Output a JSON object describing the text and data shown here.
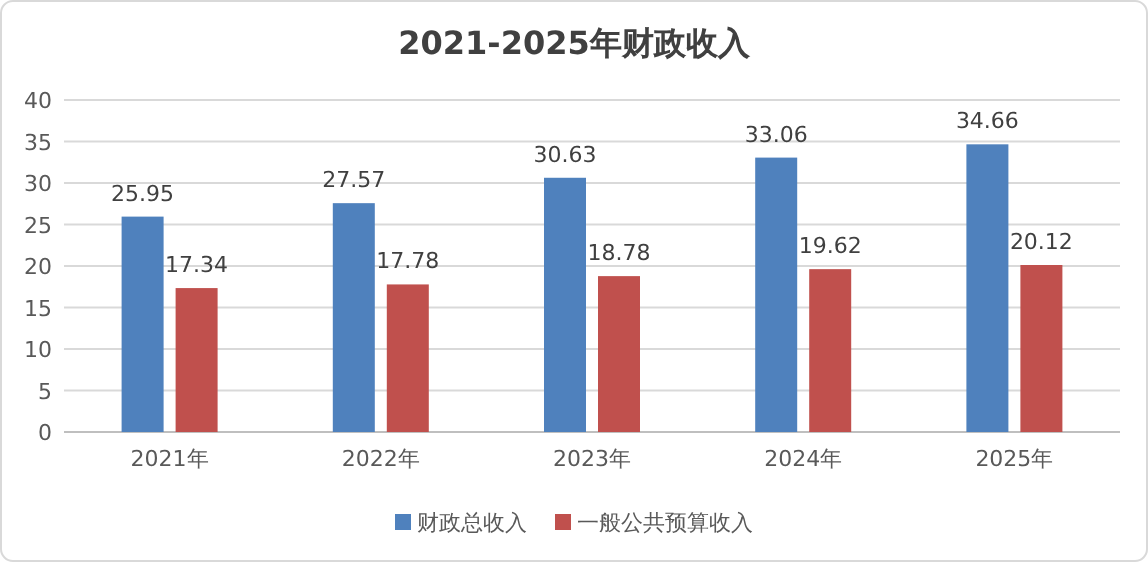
{
  "chart_data": {
    "type": "bar",
    "title": "2021-2025年财政收入",
    "categories": [
      "2021年",
      "2022年",
      "2023年",
      "2024年",
      "2025年"
    ],
    "series": [
      {
        "name": "财政总收入",
        "color": "#4f81bd",
        "values": [
          25.95,
          27.57,
          30.63,
          33.06,
          34.66
        ]
      },
      {
        "name": "一般公共预算收入",
        "color": "#c0504d",
        "values": [
          17.34,
          17.78,
          18.78,
          19.62,
          20.12
        ]
      }
    ],
    "ylim": [
      0,
      40
    ],
    "yticks": [
      0,
      5,
      10,
      15,
      20,
      25,
      30,
      35,
      40
    ],
    "grid": "y",
    "legend": "bottom",
    "data_labels": true
  }
}
